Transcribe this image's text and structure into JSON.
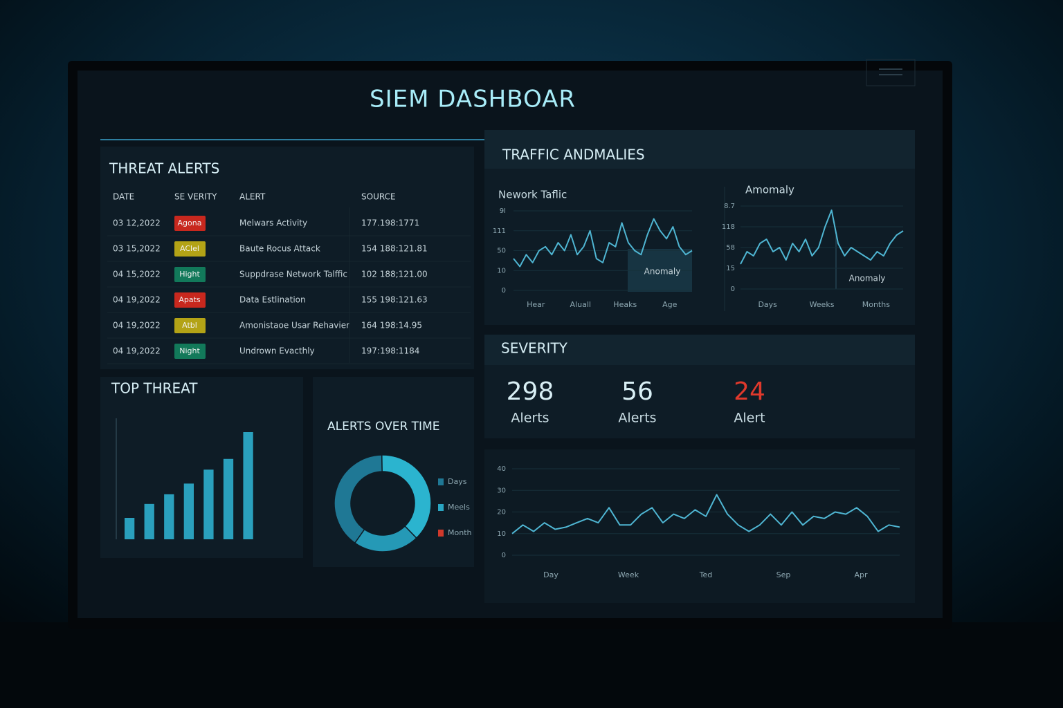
{
  "title": "SIEM DASHBOAR",
  "threat_alerts": {
    "title": "THREAT ALERTS",
    "columns": [
      "DATE",
      "SE VERITY",
      "ALERT",
      "SOURCE"
    ],
    "rows": [
      {
        "date": "03 12,2022",
        "severity": "Agona",
        "severity_color": "#c8281e",
        "alert": "Melwars Activity",
        "source": "177.198:1771"
      },
      {
        "date": "03 15,2022",
        "severity": "AClel",
        "severity_color": "#b3a316",
        "alert": "Baute Rocus Attack",
        "source": "154 188:121.81"
      },
      {
        "date": "04 15,2022",
        "severity": "Hight",
        "severity_color": "#12795a",
        "alert": "Suppdrase Network Talffic",
        "source": "102 188;121.00"
      },
      {
        "date": "04 19,2022",
        "severity": "Apats",
        "severity_color": "#c8281e",
        "alert": "Data Estlination",
        "source": "155 198:121.63"
      },
      {
        "date": "04 19,2022",
        "severity": "Atbl",
        "severity_color": "#b3a316",
        "alert": "Amonistaoe Usar Rehavier",
        "source": "164 198:14.95"
      },
      {
        "date": "04 19,2022",
        "severity": "Night",
        "severity_color": "#12795a",
        "alert": "Undrown Evacthly",
        "source": "197:198:1184"
      }
    ]
  },
  "top_threat": {
    "type": "bar",
    "title": "TOP THREAT",
    "values": [
      20,
      33,
      42,
      52,
      65,
      75,
      100
    ],
    "color": "#2aa0bd",
    "ylim": [
      0,
      100
    ]
  },
  "alerts_over_time": {
    "type": "pie",
    "title": "ALERTS OVER TIME",
    "start_angle": 215,
    "series": [
      {
        "name": "Days",
        "color": "#1f7895",
        "legend_color": "#1f7895",
        "value": 40
      },
      {
        "name": "Meels",
        "color": "#2bb4cf",
        "legend_color": "#2aa6c2",
        "value": 38
      },
      {
        "name": "Month",
        "color": "#2599b6",
        "legend_color": "#d0392b",
        "value": 22
      }
    ]
  },
  "traffic_anomalies": {
    "title": "TRAFFIC ANDMALIES",
    "charts": [
      {
        "type": "line",
        "title": "Nework Taflic",
        "values": [
          40,
          30,
          45,
          35,
          50,
          55,
          45,
          60,
          50,
          70,
          45,
          55,
          75,
          40,
          35,
          60,
          55,
          85,
          60,
          50,
          45,
          70,
          90,
          75,
          65,
          80,
          55,
          45,
          50
        ],
        "color": "#4fb6d3",
        "ylim": [
          0,
          100
        ],
        "yticks": [
          0,
          {
            "value": 25,
            "label": "10"
          },
          50,
          {
            "value": 75,
            "label": "111"
          },
          {
            "value": 100,
            "label": "9I"
          }
        ],
        "x_labels": [
          "Hear",
          "Aluall",
          "Heaks",
          "Age"
        ],
        "annotation": "Anomaly"
      },
      {
        "type": "line",
        "title": "Amomaly",
        "values": [
          30,
          45,
          40,
          55,
          60,
          45,
          50,
          35,
          55,
          45,
          60,
          40,
          50,
          75,
          95,
          55,
          40,
          50,
          45,
          40,
          35,
          45,
          40,
          55,
          65,
          70
        ],
        "color": "#4fb6d3",
        "ylim": [
          0,
          100
        ],
        "yticks": [
          0,
          {
            "value": 25,
            "label": "15"
          },
          {
            "value": 50,
            "label": "58"
          },
          {
            "value": 75,
            "label": "118"
          },
          {
            "value": 100,
            "label": "8.7"
          }
        ],
        "x_labels": [
          "Days",
          "Weeks",
          "Months"
        ],
        "annotation": "Anomaly"
      }
    ]
  },
  "severity": {
    "title": "SEVERITY",
    "stats": [
      {
        "value": 298,
        "label": "Alerts",
        "color": "#d9eff5"
      },
      {
        "value": 56,
        "label": "Alerts",
        "color": "#d9eff5"
      },
      {
        "value": 24,
        "label": "Alert",
        "color": "#e0392c"
      }
    ],
    "chart": {
      "type": "line",
      "values": [
        10,
        14,
        11,
        15,
        12,
        13,
        15,
        17,
        15,
        22,
        14,
        14,
        19,
        22,
        15,
        19,
        17,
        21,
        18,
        28,
        19,
        14,
        11,
        14,
        19,
        14,
        20,
        14,
        18,
        17,
        20,
        19,
        22,
        18,
        11,
        14,
        13
      ],
      "color": "#4fb6d3",
      "ylim": [
        0,
        40
      ],
      "yticks": [
        0,
        10,
        20,
        30,
        40
      ],
      "x_labels": [
        "Day",
        "Week",
        "Ted",
        "Sep",
        "Apr"
      ]
    }
  }
}
